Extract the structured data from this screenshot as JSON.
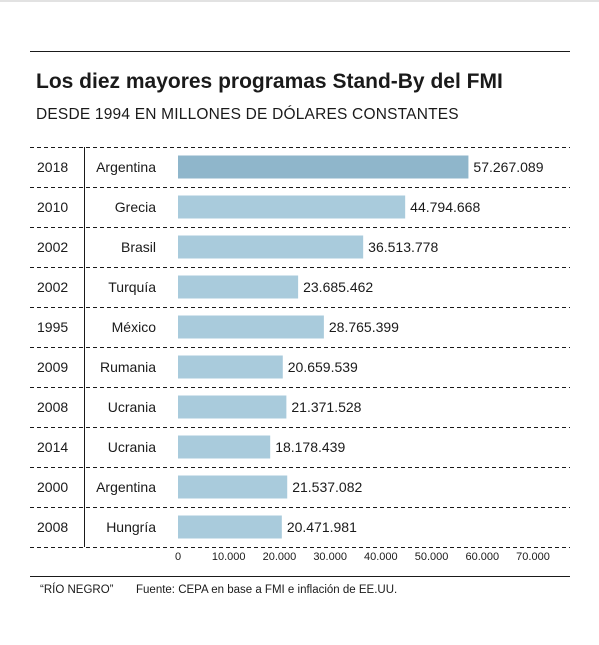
{
  "title": "Los diez mayores programas Stand-By del FMI",
  "subtitle": "DESDE 1994 EN MILLONES DE DÓLARES CONSTANTES",
  "footer": {
    "credit": "“RÍO NEGRO”",
    "source": "Fuente: CEPA en base a FMI e inflación de EE.UU."
  },
  "colors": {
    "bar": "#a9cbdc",
    "bar_highlight": "#8fb6cb",
    "text": "#1a1a1a"
  },
  "chart_data": {
    "type": "bar",
    "orientation": "horizontal",
    "title": "Los diez mayores programas Stand-By del FMI",
    "subtitle": "DESDE 1994 EN MILLONES DE DÓLARES CONSTANTES",
    "xlim": [
      0,
      70000
    ],
    "x_ticks": [
      "0",
      "10.000",
      "20.000",
      "30.000",
      "40.000",
      "50.000",
      "60.000",
      "70.000"
    ],
    "rows": [
      {
        "year": "2018",
        "country": "Argentina",
        "value": 57267.089,
        "label": "57.267.089",
        "highlight": true
      },
      {
        "year": "2010",
        "country": "Grecia",
        "value": 44794.668,
        "label": "44.794.668"
      },
      {
        "year": "2002",
        "country": "Brasil",
        "value": 36513.778,
        "label": "36.513.778"
      },
      {
        "year": "2002",
        "country": "Turquía",
        "value": 23685.462,
        "label": "23.685.462"
      },
      {
        "year": "1995",
        "country": "México",
        "value": 28765.399,
        "label": "28.765.399"
      },
      {
        "year": "2009",
        "country": "Rumania",
        "value": 20659.539,
        "label": "20.659.539"
      },
      {
        "year": "2008",
        "country": "Ucrania",
        "value": 21371.528,
        "label": "21.371.528"
      },
      {
        "year": "2014",
        "country": "Ucrania",
        "value": 18178.439,
        "label": "18.178.439"
      },
      {
        "year": "2000",
        "country": "Argentina",
        "value": 21537.082,
        "label": "21.537.082"
      },
      {
        "year": "2008",
        "country": "Hungría",
        "value": 20471.981,
        "label": "20.471.981"
      }
    ]
  }
}
